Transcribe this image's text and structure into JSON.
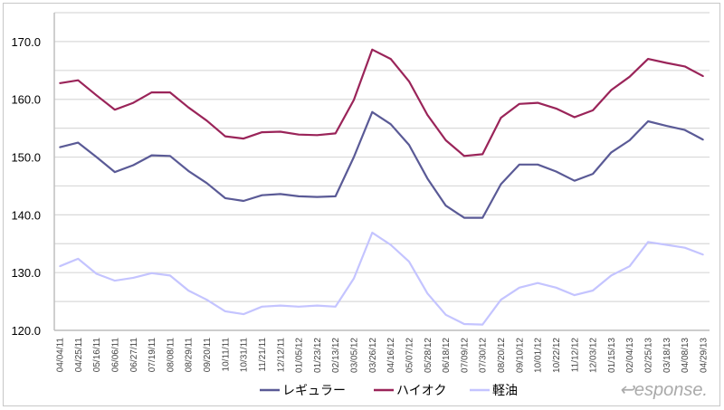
{
  "chart_data": {
    "type": "line",
    "title": "",
    "xlabel": "",
    "ylabel": "",
    "ylim": [
      120,
      175
    ],
    "yticks": [
      "120.0",
      "130.0",
      "140.0",
      "150.0",
      "160.0",
      "170.0"
    ],
    "ytick_values": [
      120,
      130,
      140,
      150,
      160,
      170
    ],
    "grid": true,
    "grid_step": 5,
    "legend_position": "bottom",
    "categories": [
      "04/04/11",
      "04/25/11",
      "05/16/11",
      "06/06/11",
      "06/27/11",
      "07/19/11",
      "08/08/11",
      "08/29/11",
      "09/20/11",
      "10/11/11",
      "10/31/11",
      "11/21/11",
      "12/12/11",
      "01/05/12",
      "01/23/12",
      "02/13/12",
      "03/05/12",
      "03/26/12",
      "04/16/12",
      "05/07/12",
      "05/28/12",
      "06/18/12",
      "07/09/12",
      "07/30/12",
      "08/20/12",
      "09/10/12",
      "10/01/12",
      "10/22/12",
      "11/12/12",
      "12/03/12",
      "01/15/13",
      "02/04/13",
      "02/25/13",
      "03/18/13",
      "04/08/13",
      "04/29/13"
    ],
    "series": [
      {
        "name": "レギュラー",
        "color": "#5a5a96",
        "values": [
          151.7,
          152.5,
          150.0,
          147.4,
          148.6,
          150.3,
          150.2,
          147.6,
          145.5,
          142.9,
          142.4,
          143.4,
          143.6,
          143.2,
          143.1,
          143.2,
          150.0,
          157.8,
          155.7,
          152.1,
          146.3,
          141.6,
          139.5,
          139.5,
          145.3,
          148.7,
          148.7,
          147.5,
          145.9,
          147.1,
          150.8,
          152.9,
          156.2,
          155.4,
          154.7,
          153.0
        ]
      },
      {
        "name": "ハイオク",
        "color": "#9a2459",
        "values": [
          162.8,
          163.3,
          160.7,
          158.2,
          159.4,
          161.2,
          161.2,
          158.6,
          156.3,
          153.6,
          153.2,
          154.3,
          154.4,
          153.9,
          153.8,
          154.1,
          159.9,
          168.6,
          167.0,
          163.1,
          157.3,
          152.9,
          150.2,
          150.5,
          156.8,
          159.2,
          159.4,
          158.4,
          156.9,
          158.1,
          161.6,
          163.9,
          167.0,
          166.3,
          165.7,
          164.0
        ]
      },
      {
        "name": "軽油",
        "color": "#c4c4ff",
        "values": [
          131.1,
          132.4,
          129.8,
          128.6,
          129.1,
          129.9,
          129.5,
          126.9,
          125.3,
          123.3,
          122.8,
          124.1,
          124.3,
          124.1,
          124.3,
          124.1,
          129.0,
          136.9,
          134.8,
          131.9,
          126.4,
          122.7,
          121.1,
          121.0,
          125.3,
          127.4,
          128.2,
          127.4,
          126.1,
          126.9,
          129.5,
          131.1,
          135.3,
          134.8,
          134.3,
          133.1
        ]
      }
    ]
  },
  "watermark": "Response."
}
